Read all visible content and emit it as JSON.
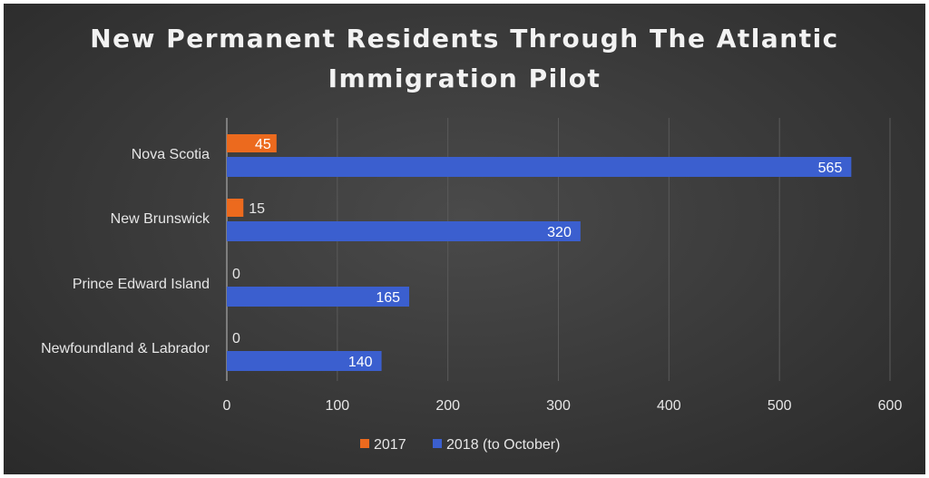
{
  "chart_data": {
    "type": "bar",
    "orientation": "horizontal",
    "title": [
      "New Permanent Residents Through The Atlantic",
      "Immigration Pilot"
    ],
    "categories": [
      "Nova Scotia",
      "New Brunswick",
      "Prince Edward Island",
      "Newfoundland & Labrador"
    ],
    "series": [
      {
        "name": "2017",
        "color": "#ec6a1e",
        "values": [
          45,
          15,
          0,
          0
        ]
      },
      {
        "name": "2018 (to October)",
        "color": "#3b5fcf",
        "values": [
          565,
          320,
          165,
          140
        ]
      }
    ],
    "xlim": [
      0,
      600
    ],
    "xticks": [
      0,
      100,
      200,
      300,
      400,
      500,
      600
    ],
    "grid": true,
    "legend": "bottom",
    "data_labels": true
  }
}
